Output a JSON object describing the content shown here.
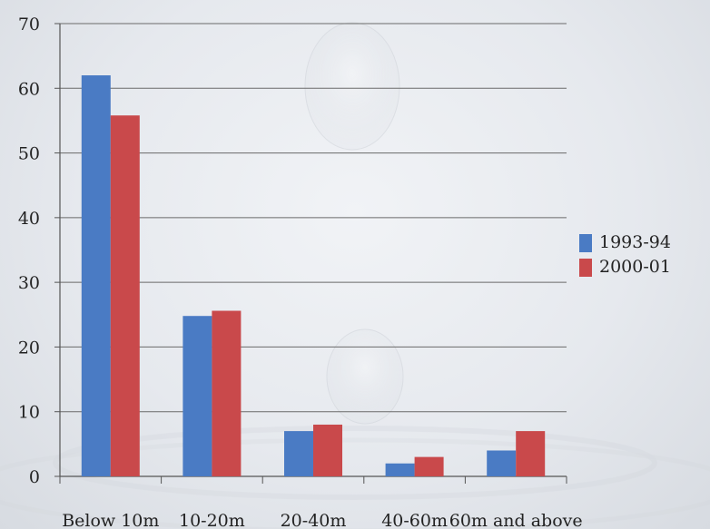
{
  "chart_data": {
    "type": "bar",
    "categories": [
      "Below 10m",
      "10-20m",
      "20-40m",
      "40-60m",
      "60m and above"
    ],
    "series": [
      {
        "name": "1993-94",
        "color": "#4a7bc4",
        "values": [
          62,
          24.8,
          7,
          2,
          4
        ]
      },
      {
        "name": "2000-01",
        "color": "#c9494b",
        "values": [
          55.8,
          25.6,
          8,
          3,
          7
        ]
      }
    ],
    "ylim": [
      0,
      70
    ],
    "yticks": [
      0,
      10,
      20,
      30,
      40,
      50,
      60,
      70
    ],
    "grid": true,
    "legend_position": "right",
    "title": "",
    "xlabel": "",
    "ylabel": ""
  }
}
